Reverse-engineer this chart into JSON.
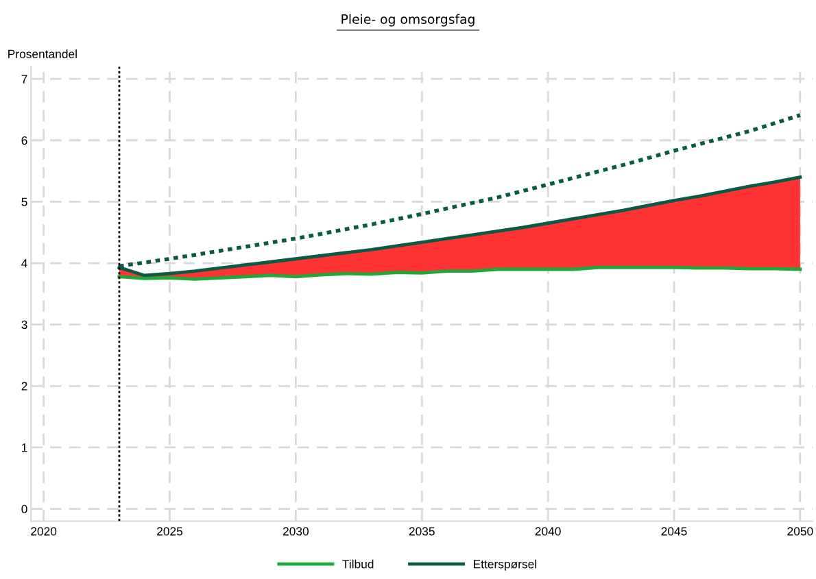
{
  "chart_data": {
    "type": "line",
    "title": "Pleie- og omsorgsfag",
    "ylabel": "Prosentandel",
    "x": [
      2023,
      2024,
      2025,
      2026,
      2027,
      2028,
      2029,
      2030,
      2031,
      2032,
      2033,
      2034,
      2035,
      2036,
      2037,
      2038,
      2039,
      2040,
      2041,
      2042,
      2043,
      2044,
      2045,
      2046,
      2047,
      2048,
      2049,
      2050
    ],
    "xlim": [
      2019.5,
      2050.5
    ],
    "xticks": [
      2020,
      2025,
      2030,
      2035,
      2040,
      2045,
      2050
    ],
    "ylim": [
      -0.2,
      7.2
    ],
    "yticks": [
      0,
      1,
      2,
      3,
      4,
      5,
      6,
      7
    ],
    "grid": true,
    "legend": "bottom",
    "marker": "none",
    "ref_lines": [
      {
        "axis": "x",
        "value": 2023,
        "color": "#000000",
        "line_style": "dotted"
      }
    ],
    "series": [
      {
        "name": "Tilbud",
        "color": "#22a83a",
        "line_style": "solid",
        "values": [
          3.78,
          3.75,
          3.76,
          3.74,
          3.76,
          3.78,
          3.8,
          3.78,
          3.81,
          3.83,
          3.82,
          3.85,
          3.84,
          3.87,
          3.87,
          3.9,
          3.9,
          3.9,
          3.9,
          3.93,
          3.93,
          3.93,
          3.93,
          3.92,
          3.92,
          3.91,
          3.91,
          3.9
        ]
      },
      {
        "type": "area",
        "color": "#ff3333",
        "values": [
          3.93,
          3.8,
          3.83,
          3.87,
          3.92,
          3.97,
          4.02,
          4.07,
          4.12,
          4.17,
          4.22,
          4.28,
          4.34,
          4.4,
          4.46,
          4.52,
          4.58,
          4.65,
          4.72,
          4.79,
          4.86,
          4.94,
          5.02,
          5.09,
          5.17,
          5.25,
          5.32,
          5.4
        ]
      },
      {
        "name": "Etterspørsel",
        "color": "#0b5a45",
        "line_style": "solid",
        "values": [
          3.93,
          3.8,
          3.83,
          3.87,
          3.92,
          3.97,
          4.02,
          4.07,
          4.12,
          4.17,
          4.22,
          4.28,
          4.34,
          4.4,
          4.46,
          4.52,
          4.58,
          4.65,
          4.72,
          4.79,
          4.86,
          4.94,
          5.02,
          5.09,
          5.17,
          5.25,
          5.32,
          5.4
        ]
      },
      {
        "color": "#0b5a45",
        "line_style": "dotted",
        "x": [
          2023,
          2025,
          2027,
          2030,
          2033,
          2035,
          2038,
          2040,
          2043,
          2045,
          2048,
          2050
        ],
        "values": [
          3.95,
          4.07,
          4.2,
          4.4,
          4.63,
          4.8,
          5.07,
          5.28,
          5.6,
          5.83,
          6.15,
          6.41
        ]
      }
    ]
  }
}
